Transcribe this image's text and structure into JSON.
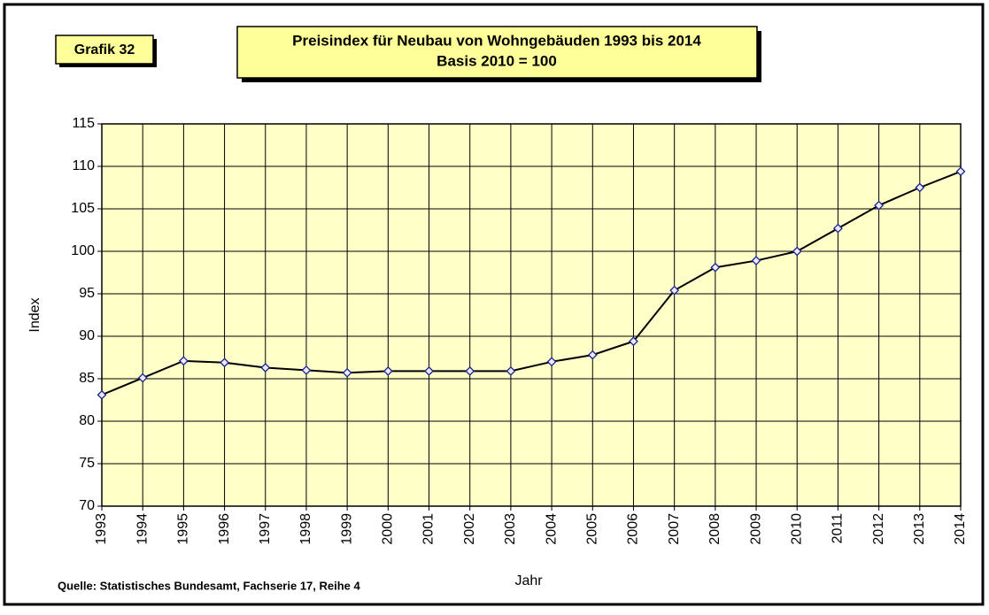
{
  "chart_data": {
    "type": "line",
    "badge": "Grafik 32",
    "title": "Preisindex für Neubau von Wohngebäuden 1993 bis 2014",
    "subtitle": "Basis 2010 = 100",
    "x_label": "Jahr",
    "y_label": "Index",
    "source": "Quelle: Statistisches Bundesamt, Fachserie 17, Reihe 4",
    "categories": [
      "1993",
      "1994",
      "1995",
      "1996",
      "1997",
      "1998",
      "1999",
      "2000",
      "2001",
      "2002",
      "2003",
      "2004",
      "2005",
      "2006",
      "2007",
      "2008",
      "2009",
      "2010",
      "2011",
      "2012",
      "2013",
      "2014"
    ],
    "values": [
      83.1,
      85.1,
      87.1,
      86.9,
      86.3,
      86.0,
      85.7,
      85.9,
      85.9,
      85.9,
      85.9,
      87.0,
      87.8,
      89.4,
      95.4,
      98.1,
      98.9,
      100.0,
      102.7,
      105.4,
      107.5,
      109.4
    ],
    "color": "#000000",
    "marker_color": "#1f1f8f",
    "ylim": [
      70,
      115
    ],
    "yticks": [
      70,
      75,
      80,
      85,
      90,
      95,
      100,
      105,
      110,
      115
    ],
    "grid": true
  }
}
